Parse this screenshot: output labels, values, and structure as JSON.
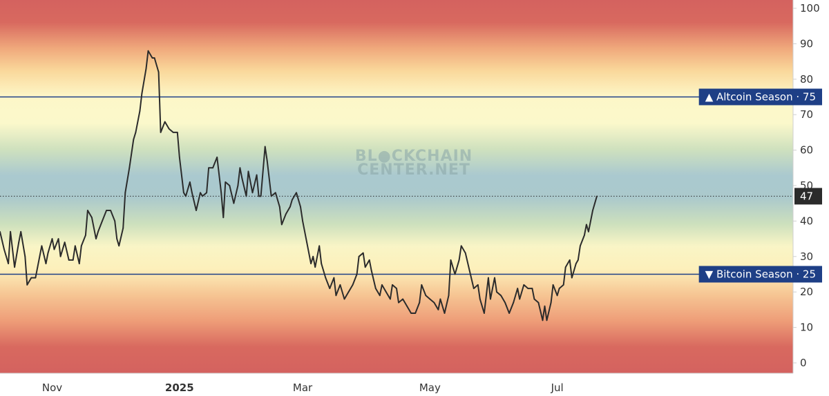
{
  "chart_data": {
    "type": "line",
    "watermark": [
      "BL●CKCHAIN",
      "CENTER.NET"
    ],
    "y_ticks": [
      "0",
      "10",
      "20",
      "30",
      "40",
      "50",
      "60",
      "70",
      "80",
      "90",
      "100"
    ],
    "ylim": [
      0,
      100
    ],
    "y_axis_side": "right",
    "x_ticks": [
      {
        "label": "Nov",
        "bold": false,
        "date": "2024-11-01"
      },
      {
        "label": "2025",
        "bold": true,
        "date": "2025-01-01"
      },
      {
        "label": "Mar",
        "bold": false,
        "date": "2025-03-01"
      },
      {
        "label": "May",
        "bold": false,
        "date": "2025-05-01"
      },
      {
        "label": "Jul",
        "bold": false,
        "date": "2025-07-01"
      }
    ],
    "xlim": [
      "2024-10-07",
      "2025-10-22"
    ],
    "background": "vertical heat gradient: red at 100, orange, yellow, green, blue at 50, green, yellow, orange, red at 0",
    "reference_lines": [
      {
        "value": 75,
        "label": "▲ Altcoin Season",
        "value_label": "75",
        "color": "#1e3f86",
        "style": "solid"
      },
      {
        "value": 25,
        "label": "▼ Bitcoin Season",
        "value_label": "25",
        "color": "#1e3f86",
        "style": "solid"
      }
    ],
    "current_value": {
      "value": 47,
      "label": "47",
      "color": "#2b2b2b",
      "style": "dotted"
    },
    "series": [
      {
        "color": "#2b2b2b",
        "points": [
          [
            "2024-10-07",
            37
          ],
          [
            "2024-10-09",
            32
          ],
          [
            "2024-10-11",
            28
          ],
          [
            "2024-10-12",
            37
          ],
          [
            "2024-10-14",
            27
          ],
          [
            "2024-10-16",
            34
          ],
          [
            "2024-10-17",
            37
          ],
          [
            "2024-10-19",
            30
          ],
          [
            "2024-10-20",
            22
          ],
          [
            "2024-10-22",
            24
          ],
          [
            "2024-10-24",
            24
          ],
          [
            "2024-10-25",
            27
          ],
          [
            "2024-10-27",
            33
          ],
          [
            "2024-10-29",
            28
          ],
          [
            "2024-10-30",
            31
          ],
          [
            "2024-11-01",
            35
          ],
          [
            "2024-11-02",
            32
          ],
          [
            "2024-11-04",
            35
          ],
          [
            "2024-11-05",
            30
          ],
          [
            "2024-11-07",
            34
          ],
          [
            "2024-11-09",
            29
          ],
          [
            "2024-11-11",
            29
          ],
          [
            "2024-11-12",
            33
          ],
          [
            "2024-11-14",
            28
          ],
          [
            "2024-11-15",
            33
          ],
          [
            "2024-11-17",
            36
          ],
          [
            "2024-11-18",
            43
          ],
          [
            "2024-11-20",
            41
          ],
          [
            "2024-11-22",
            35
          ],
          [
            "2024-11-23",
            37
          ],
          [
            "2024-11-25",
            40
          ],
          [
            "2024-11-27",
            43
          ],
          [
            "2024-11-29",
            43
          ],
          [
            "2024-12-01",
            40
          ],
          [
            "2024-12-02",
            35
          ],
          [
            "2024-12-03",
            33
          ],
          [
            "2024-12-05",
            38
          ],
          [
            "2024-12-06",
            48
          ],
          [
            "2024-12-08",
            55
          ],
          [
            "2024-12-10",
            63
          ],
          [
            "2024-12-11",
            65
          ],
          [
            "2024-12-13",
            71
          ],
          [
            "2024-12-14",
            76
          ],
          [
            "2024-12-16",
            83
          ],
          [
            "2024-12-17",
            88
          ],
          [
            "2024-12-19",
            86
          ],
          [
            "2024-12-20",
            86
          ],
          [
            "2024-12-22",
            82
          ],
          [
            "2024-12-23",
            65
          ],
          [
            "2024-12-25",
            68
          ],
          [
            "2024-12-27",
            66
          ],
          [
            "2024-12-29",
            65
          ],
          [
            "2024-12-31",
            65
          ],
          [
            "2025-01-01",
            58
          ],
          [
            "2025-01-03",
            48
          ],
          [
            "2025-01-04",
            47
          ],
          [
            "2025-01-06",
            51
          ],
          [
            "2025-01-07",
            48
          ],
          [
            "2025-01-09",
            43
          ],
          [
            "2025-01-11",
            48
          ],
          [
            "2025-01-12",
            47
          ],
          [
            "2025-01-14",
            48
          ],
          [
            "2025-01-15",
            55
          ],
          [
            "2025-01-17",
            55
          ],
          [
            "2025-01-19",
            58
          ],
          [
            "2025-01-21",
            48
          ],
          [
            "2025-01-22",
            41
          ],
          [
            "2025-01-23",
            51
          ],
          [
            "2025-01-25",
            50
          ],
          [
            "2025-01-27",
            45
          ],
          [
            "2025-01-29",
            50
          ],
          [
            "2025-01-30",
            55
          ],
          [
            "2025-01-31",
            52
          ],
          [
            "2025-02-02",
            47
          ],
          [
            "2025-02-03",
            54
          ],
          [
            "2025-02-05",
            48
          ],
          [
            "2025-02-07",
            53
          ],
          [
            "2025-02-08",
            47
          ],
          [
            "2025-02-09",
            47
          ],
          [
            "2025-02-11",
            61
          ],
          [
            "2025-02-12",
            57
          ],
          [
            "2025-02-14",
            47
          ],
          [
            "2025-02-16",
            48
          ],
          [
            "2025-02-18",
            44
          ],
          [
            "2025-02-19",
            39
          ],
          [
            "2025-02-21",
            42
          ],
          [
            "2025-02-23",
            44
          ],
          [
            "2025-02-24",
            46
          ],
          [
            "2025-02-26",
            48
          ],
          [
            "2025-02-28",
            44
          ],
          [
            "2025-03-01",
            40
          ],
          [
            "2025-03-03",
            34
          ],
          [
            "2025-03-05",
            28
          ],
          [
            "2025-03-06",
            30
          ],
          [
            "2025-03-07",
            27
          ],
          [
            "2025-03-09",
            33
          ],
          [
            "2025-03-10",
            28
          ],
          [
            "2025-03-12",
            24
          ],
          [
            "2025-03-14",
            21
          ],
          [
            "2025-03-16",
            24
          ],
          [
            "2025-03-17",
            19
          ],
          [
            "2025-03-19",
            22
          ],
          [
            "2025-03-21",
            18
          ],
          [
            "2025-03-23",
            20
          ],
          [
            "2025-03-25",
            22
          ],
          [
            "2025-03-27",
            25
          ],
          [
            "2025-03-28",
            30
          ],
          [
            "2025-03-30",
            31
          ],
          [
            "2025-03-31",
            27
          ],
          [
            "2025-04-02",
            29
          ],
          [
            "2025-04-03",
            26
          ],
          [
            "2025-04-05",
            21
          ],
          [
            "2025-04-07",
            19
          ],
          [
            "2025-04-08",
            22
          ],
          [
            "2025-04-10",
            20
          ],
          [
            "2025-04-12",
            18
          ],
          [
            "2025-04-13",
            22
          ],
          [
            "2025-04-15",
            21
          ],
          [
            "2025-04-16",
            17
          ],
          [
            "2025-04-18",
            18
          ],
          [
            "2025-04-20",
            16
          ],
          [
            "2025-04-22",
            14
          ],
          [
            "2025-04-24",
            14
          ],
          [
            "2025-04-26",
            17
          ],
          [
            "2025-04-27",
            22
          ],
          [
            "2025-04-29",
            19
          ],
          [
            "2025-05-01",
            18
          ],
          [
            "2025-05-03",
            17
          ],
          [
            "2025-05-05",
            15
          ],
          [
            "2025-05-06",
            18
          ],
          [
            "2025-05-08",
            14
          ],
          [
            "2025-05-10",
            19
          ],
          [
            "2025-05-11",
            29
          ],
          [
            "2025-05-13",
            25
          ],
          [
            "2025-05-15",
            29
          ],
          [
            "2025-05-16",
            33
          ],
          [
            "2025-05-18",
            31
          ],
          [
            "2025-05-20",
            26
          ],
          [
            "2025-05-22",
            21
          ],
          [
            "2025-05-24",
            22
          ],
          [
            "2025-05-25",
            18
          ],
          [
            "2025-05-27",
            14
          ],
          [
            "2025-05-29",
            24
          ],
          [
            "2025-05-30",
            18
          ],
          [
            "2025-06-01",
            24
          ],
          [
            "2025-06-02",
            20
          ],
          [
            "2025-06-04",
            19
          ],
          [
            "2025-06-06",
            17
          ],
          [
            "2025-06-08",
            14
          ],
          [
            "2025-06-10",
            17
          ],
          [
            "2025-06-12",
            21
          ],
          [
            "2025-06-13",
            18
          ],
          [
            "2025-06-15",
            22
          ],
          [
            "2025-06-17",
            21
          ],
          [
            "2025-06-19",
            21
          ],
          [
            "2025-06-20",
            18
          ],
          [
            "2025-06-22",
            17
          ],
          [
            "2025-06-24",
            12
          ],
          [
            "2025-06-25",
            16
          ],
          [
            "2025-06-26",
            12
          ],
          [
            "2025-06-28",
            17
          ],
          [
            "2025-06-29",
            22
          ],
          [
            "2025-07-01",
            19
          ],
          [
            "2025-07-02",
            21
          ],
          [
            "2025-07-04",
            22
          ],
          [
            "2025-07-05",
            27
          ],
          [
            "2025-07-07",
            29
          ],
          [
            "2025-07-08",
            24
          ],
          [
            "2025-07-10",
            28
          ],
          [
            "2025-07-11",
            29
          ],
          [
            "2025-07-12",
            33
          ],
          [
            "2025-07-14",
            36
          ],
          [
            "2025-07-15",
            39
          ],
          [
            "2025-07-16",
            37
          ],
          [
            "2025-07-18",
            43
          ],
          [
            "2025-07-19",
            45
          ],
          [
            "2025-07-20",
            47
          ]
        ]
      }
    ]
  }
}
